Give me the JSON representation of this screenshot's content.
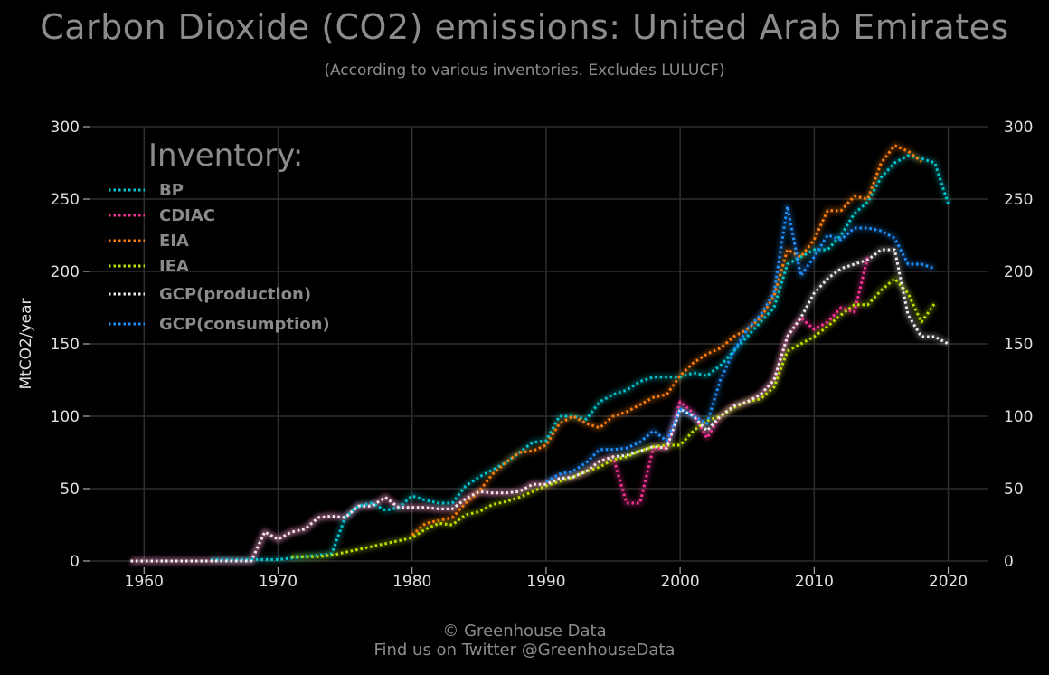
{
  "title": "Carbon Dioxide (CO2) emissions: United Arab Emirates",
  "subtitle": "(According to various inventories. Excludes LULUCF)",
  "footer": {
    "line1": "© Greenhouse Data",
    "line2": "Find us on Twitter @GreenhouseData"
  },
  "chart_data": {
    "type": "line",
    "title": "Carbon Dioxide (CO2) emissions: United Arab Emirates",
    "subtitle": "(According to various inventories. Excludes LULUCF)",
    "ylabel": "MtCO2/year",
    "xlabel": "",
    "xlim": [
      1956,
      2023
    ],
    "ylim": [
      0,
      300
    ],
    "xticks": [
      1960,
      1970,
      1980,
      1990,
      2000,
      2010,
      2020
    ],
    "yticks": [
      0,
      50,
      100,
      150,
      200,
      250,
      300
    ],
    "grid": true,
    "secondary_y_axis": true,
    "line_style": "dotted",
    "legend": {
      "title": "Inventory:",
      "placement": "top-left"
    },
    "series": [
      {
        "name": "BP",
        "color": "#00c8d2",
        "x": [
          1965,
          1966,
          1967,
          1968,
          1969,
          1970,
          1971,
          1972,
          1973,
          1974,
          1975,
          1976,
          1977,
          1978,
          1979,
          1980,
          1981,
          1982,
          1983,
          1984,
          1985,
          1986,
          1987,
          1988,
          1989,
          1990,
          1991,
          1992,
          1993,
          1994,
          1995,
          1996,
          1997,
          1998,
          1999,
          2000,
          2001,
          2002,
          2003,
          2004,
          2005,
          2006,
          2007,
          2008,
          2009,
          2010,
          2011,
          2012,
          2013,
          2014,
          2015,
          2016,
          2017,
          2018,
          2019,
          2020
        ],
        "y": [
          1,
          1,
          1,
          1,
          1,
          1,
          2,
          3,
          4,
          5,
          30,
          38,
          40,
          35,
          37,
          45,
          42,
          40,
          40,
          52,
          58,
          63,
          68,
          75,
          82,
          83,
          100,
          100,
          98,
          110,
          115,
          118,
          124,
          127,
          127,
          127,
          130,
          128,
          135,
          145,
          155,
          165,
          175,
          205,
          210,
          215,
          215,
          225,
          240,
          248,
          265,
          275,
          280,
          278,
          275,
          247
        ]
      },
      {
        "name": "CDIAC",
        "color": "#ff3399",
        "x": [
          1959,
          1960,
          1961,
          1962,
          1963,
          1964,
          1965,
          1966,
          1967,
          1968,
          1969,
          1970,
          1971,
          1972,
          1973,
          1974,
          1975,
          1976,
          1977,
          1978,
          1979,
          1980,
          1981,
          1982,
          1983,
          1984,
          1985,
          1986,
          1987,
          1988,
          1989,
          1990,
          1991,
          1992,
          1993,
          1994,
          1995,
          1996,
          1997,
          1998,
          1999,
          2000,
          2001,
          2002,
          2003,
          2004,
          2005,
          2006,
          2007,
          2008,
          2009,
          2010,
          2011,
          2012,
          2013,
          2014
        ],
        "y": [
          0,
          0,
          0,
          0,
          0,
          0,
          0,
          0,
          0,
          0,
          20,
          15,
          20,
          22,
          30,
          31,
          30,
          38,
          38,
          44,
          37,
          37,
          37,
          36,
          36,
          43,
          48,
          47,
          47,
          48,
          53,
          53,
          57,
          58,
          62,
          69,
          72,
          40,
          40,
          78,
          78,
          110,
          102,
          85,
          100,
          107,
          110,
          115,
          125,
          155,
          168,
          160,
          165,
          175,
          172,
          210
        ]
      },
      {
        "name": "EIA",
        "color": "#ff7f0e",
        "x": [
          1980,
          1981,
          1982,
          1983,
          1984,
          1985,
          1986,
          1987,
          1988,
          1989,
          1990,
          1991,
          1992,
          1993,
          1994,
          1995,
          1996,
          1997,
          1998,
          1999,
          2000,
          2001,
          2002,
          2003,
          2004,
          2005,
          2006,
          2007,
          2008,
          2009,
          2010,
          2011,
          2012,
          2013,
          2014,
          2015,
          2016,
          2017,
          2018
        ],
        "y": [
          18,
          26,
          28,
          30,
          40,
          48,
          60,
          68,
          75,
          76,
          80,
          95,
          100,
          95,
          92,
          100,
          103,
          108,
          113,
          115,
          128,
          137,
          143,
          147,
          155,
          160,
          168,
          183,
          215,
          210,
          222,
          242,
          242,
          252,
          250,
          275,
          287,
          283,
          276
        ]
      },
      {
        "name": "IEA",
        "color": "#bfe000",
        "x": [
          1971,
          1972,
          1973,
          1974,
          1975,
          1976,
          1977,
          1978,
          1979,
          1980,
          1981,
          1982,
          1983,
          1984,
          1985,
          1986,
          1987,
          1988,
          1989,
          1990,
          1991,
          1992,
          1993,
          1994,
          1995,
          1996,
          1997,
          1998,
          1999,
          2000,
          2001,
          2002,
          2003,
          2004,
          2005,
          2006,
          2007,
          2008,
          2009,
          2010,
          2011,
          2012,
          2013,
          2014,
          2015,
          2016,
          2017,
          2018,
          2019
        ],
        "y": [
          3,
          3,
          3,
          4,
          6,
          8,
          10,
          12,
          14,
          16,
          22,
          26,
          25,
          32,
          34,
          39,
          41,
          44,
          48,
          52,
          55,
          58,
          62,
          65,
          70,
          72,
          76,
          79,
          80,
          80,
          90,
          97,
          100,
          106,
          110,
          112,
          120,
          145,
          150,
          155,
          162,
          170,
          177,
          177,
          187,
          195,
          185,
          165,
          178
        ]
      },
      {
        "name": "GCP(production)",
        "color": "#eeeeee",
        "x": [
          1959,
          1960,
          1961,
          1962,
          1963,
          1964,
          1965,
          1966,
          1967,
          1968,
          1969,
          1970,
          1971,
          1972,
          1973,
          1974,
          1975,
          1976,
          1977,
          1978,
          1979,
          1980,
          1981,
          1982,
          1983,
          1984,
          1985,
          1986,
          1987,
          1988,
          1989,
          1990,
          1991,
          1992,
          1993,
          1994,
          1995,
          1996,
          1997,
          1998,
          1999,
          2000,
          2001,
          2002,
          2003,
          2004,
          2005,
          2006,
          2007,
          2008,
          2009,
          2010,
          2011,
          2012,
          2013,
          2014,
          2015,
          2016,
          2017,
          2018,
          2019,
          2020
        ],
        "y": [
          0,
          0,
          0,
          0,
          0,
          0,
          0,
          0,
          0,
          0,
          20,
          15,
          20,
          22,
          30,
          31,
          30,
          38,
          38,
          44,
          37,
          37,
          37,
          36,
          36,
          43,
          48,
          47,
          47,
          48,
          53,
          53,
          57,
          58,
          62,
          69,
          72,
          73,
          76,
          79,
          78,
          105,
          100,
          90,
          100,
          107,
          110,
          115,
          125,
          155,
          168,
          185,
          195,
          202,
          205,
          208,
          215,
          215,
          170,
          155,
          155,
          150
        ]
      },
      {
        "name": "GCP(consumption)",
        "color": "#1e90ff",
        "x": [
          1990,
          1991,
          1992,
          1993,
          1994,
          1995,
          1996,
          1997,
          1998,
          1999,
          2000,
          2001,
          2002,
          2003,
          2004,
          2005,
          2006,
          2007,
          2008,
          2009,
          2010,
          2011,
          2012,
          2013,
          2014,
          2015,
          2016,
          2017,
          2018,
          2019
        ],
        "y": [
          55,
          60,
          62,
          68,
          77,
          77,
          78,
          82,
          90,
          83,
          105,
          100,
          95,
          125,
          145,
          160,
          170,
          185,
          245,
          197,
          210,
          225,
          222,
          230,
          230,
          228,
          223,
          205,
          205,
          202
        ]
      }
    ]
  }
}
